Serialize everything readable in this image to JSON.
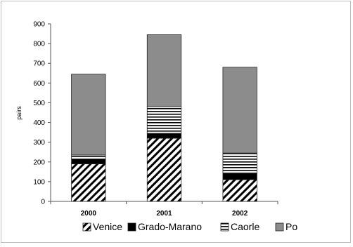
{
  "chart_data": {
    "type": "bar",
    "stacked": true,
    "categories": [
      "2000",
      "2001",
      "2002"
    ],
    "series": [
      {
        "name": "Venice",
        "values": [
          190,
          320,
          110
        ],
        "pattern": "diagonal-hatch"
      },
      {
        "name": "Grado-Marano",
        "values": [
          25,
          25,
          30
        ],
        "pattern": "solid-black"
      },
      {
        "name": "Caorle",
        "values": [
          20,
          135,
          105
        ],
        "pattern": "horizontal-lines"
      },
      {
        "name": "Po",
        "values": [
          410,
          365,
          435
        ],
        "pattern": "solid-gray"
      }
    ],
    "ylabel": "pairs",
    "xlabel": "",
    "ylim": [
      0,
      900
    ],
    "yticks": [
      0,
      100,
      200,
      300,
      400,
      500,
      600,
      700,
      800,
      900
    ],
    "grid": false,
    "legend_position": "bottom",
    "colors": {
      "po": "#8c8c8c",
      "grado": "#000000",
      "hatch": "#000000",
      "axis": "#555555"
    }
  }
}
